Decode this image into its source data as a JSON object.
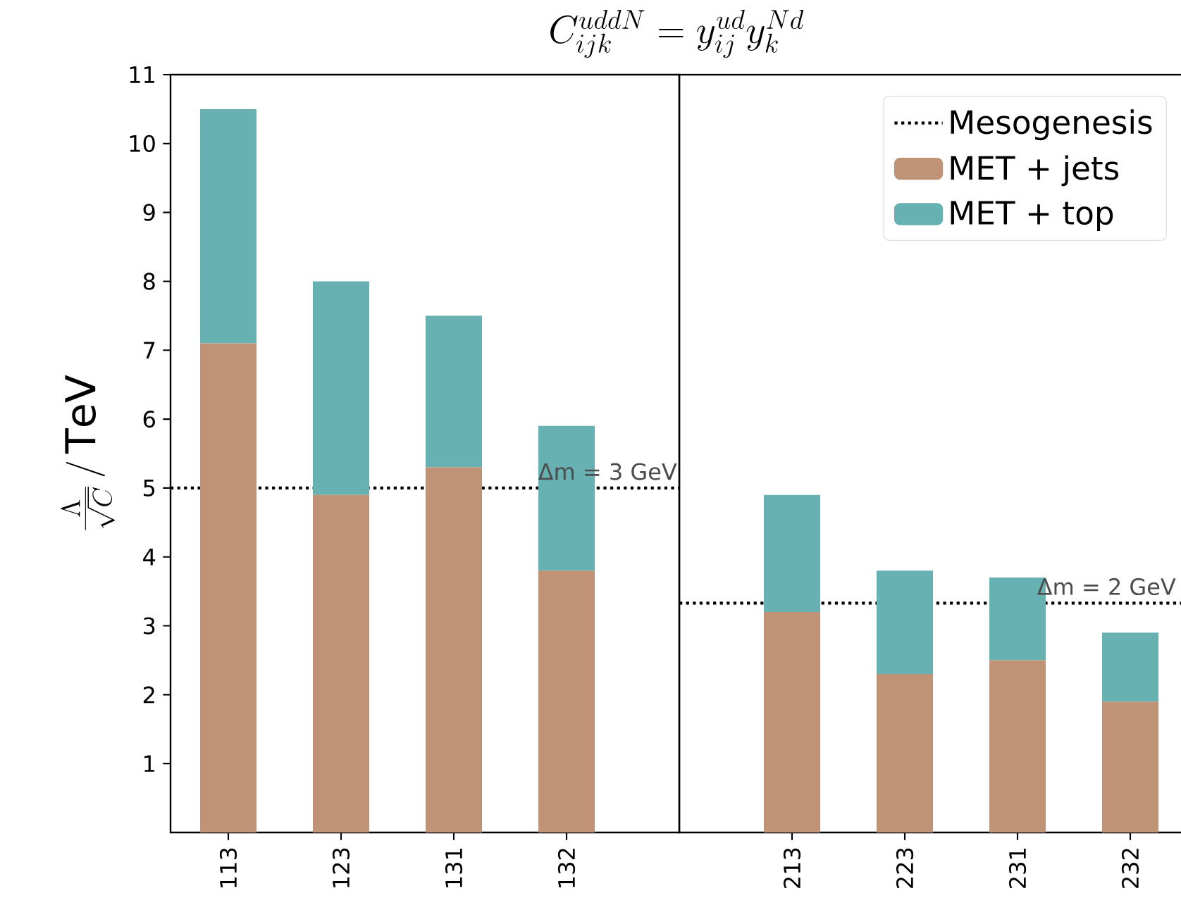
{
  "chart_data": [
    {
      "type": "bar",
      "title": "C_{ijk}^{uddN} = y_{ij}^{ud} y_{k}^{Nd}",
      "ylabel": "\\frac{\\Lambda}{\\sqrt{C}}\\,/\\,\\mathrm{TeV}",
      "categories": [
        "113",
        "123",
        "131",
        "132"
      ],
      "series": [
        {
          "color": "#c09377",
          "values": [
            7.1,
            4.9,
            5.3,
            3.8
          ]
        },
        {
          "color": "#67b1b2",
          "values": [
            3.4,
            3.1,
            2.2,
            2.1
          ]
        }
      ],
      "stacked": true,
      "ylim": [
        0,
        11
      ],
      "yticks": [
        1,
        2,
        3,
        4,
        5,
        6,
        7,
        8,
        9,
        10,
        11
      ],
      "ref_lines": [
        {
          "axis": "y",
          "value": 5,
          "color": "#000000",
          "line_style": "dotted"
        }
      ],
      "annotations": [
        {
          "text": "Δm = 3 GeV",
          "y": 5
        }
      ]
    },
    {
      "type": "bar",
      "categories": [
        "213",
        "223",
        "231",
        "232"
      ],
      "series": [
        {
          "name": "MET + jets",
          "color": "#c09377",
          "values": [
            3.2,
            2.3,
            2.5,
            1.9
          ]
        },
        {
          "name": "MET + top",
          "color": "#67b1b2",
          "values": [
            1.7,
            1.5,
            1.2,
            1.0
          ]
        }
      ],
      "stacked": true,
      "ylim": [
        0,
        11
      ],
      "tick_labels": "x",
      "legend": "top right",
      "ref_lines": [
        {
          "axis": "y",
          "value": 3.33,
          "label": "Mesogenesis",
          "color": "#000000",
          "line_style": "dotted"
        }
      ],
      "annotations": [
        {
          "text": "Δm = 2 GeV",
          "y": 3.33
        }
      ]
    }
  ]
}
